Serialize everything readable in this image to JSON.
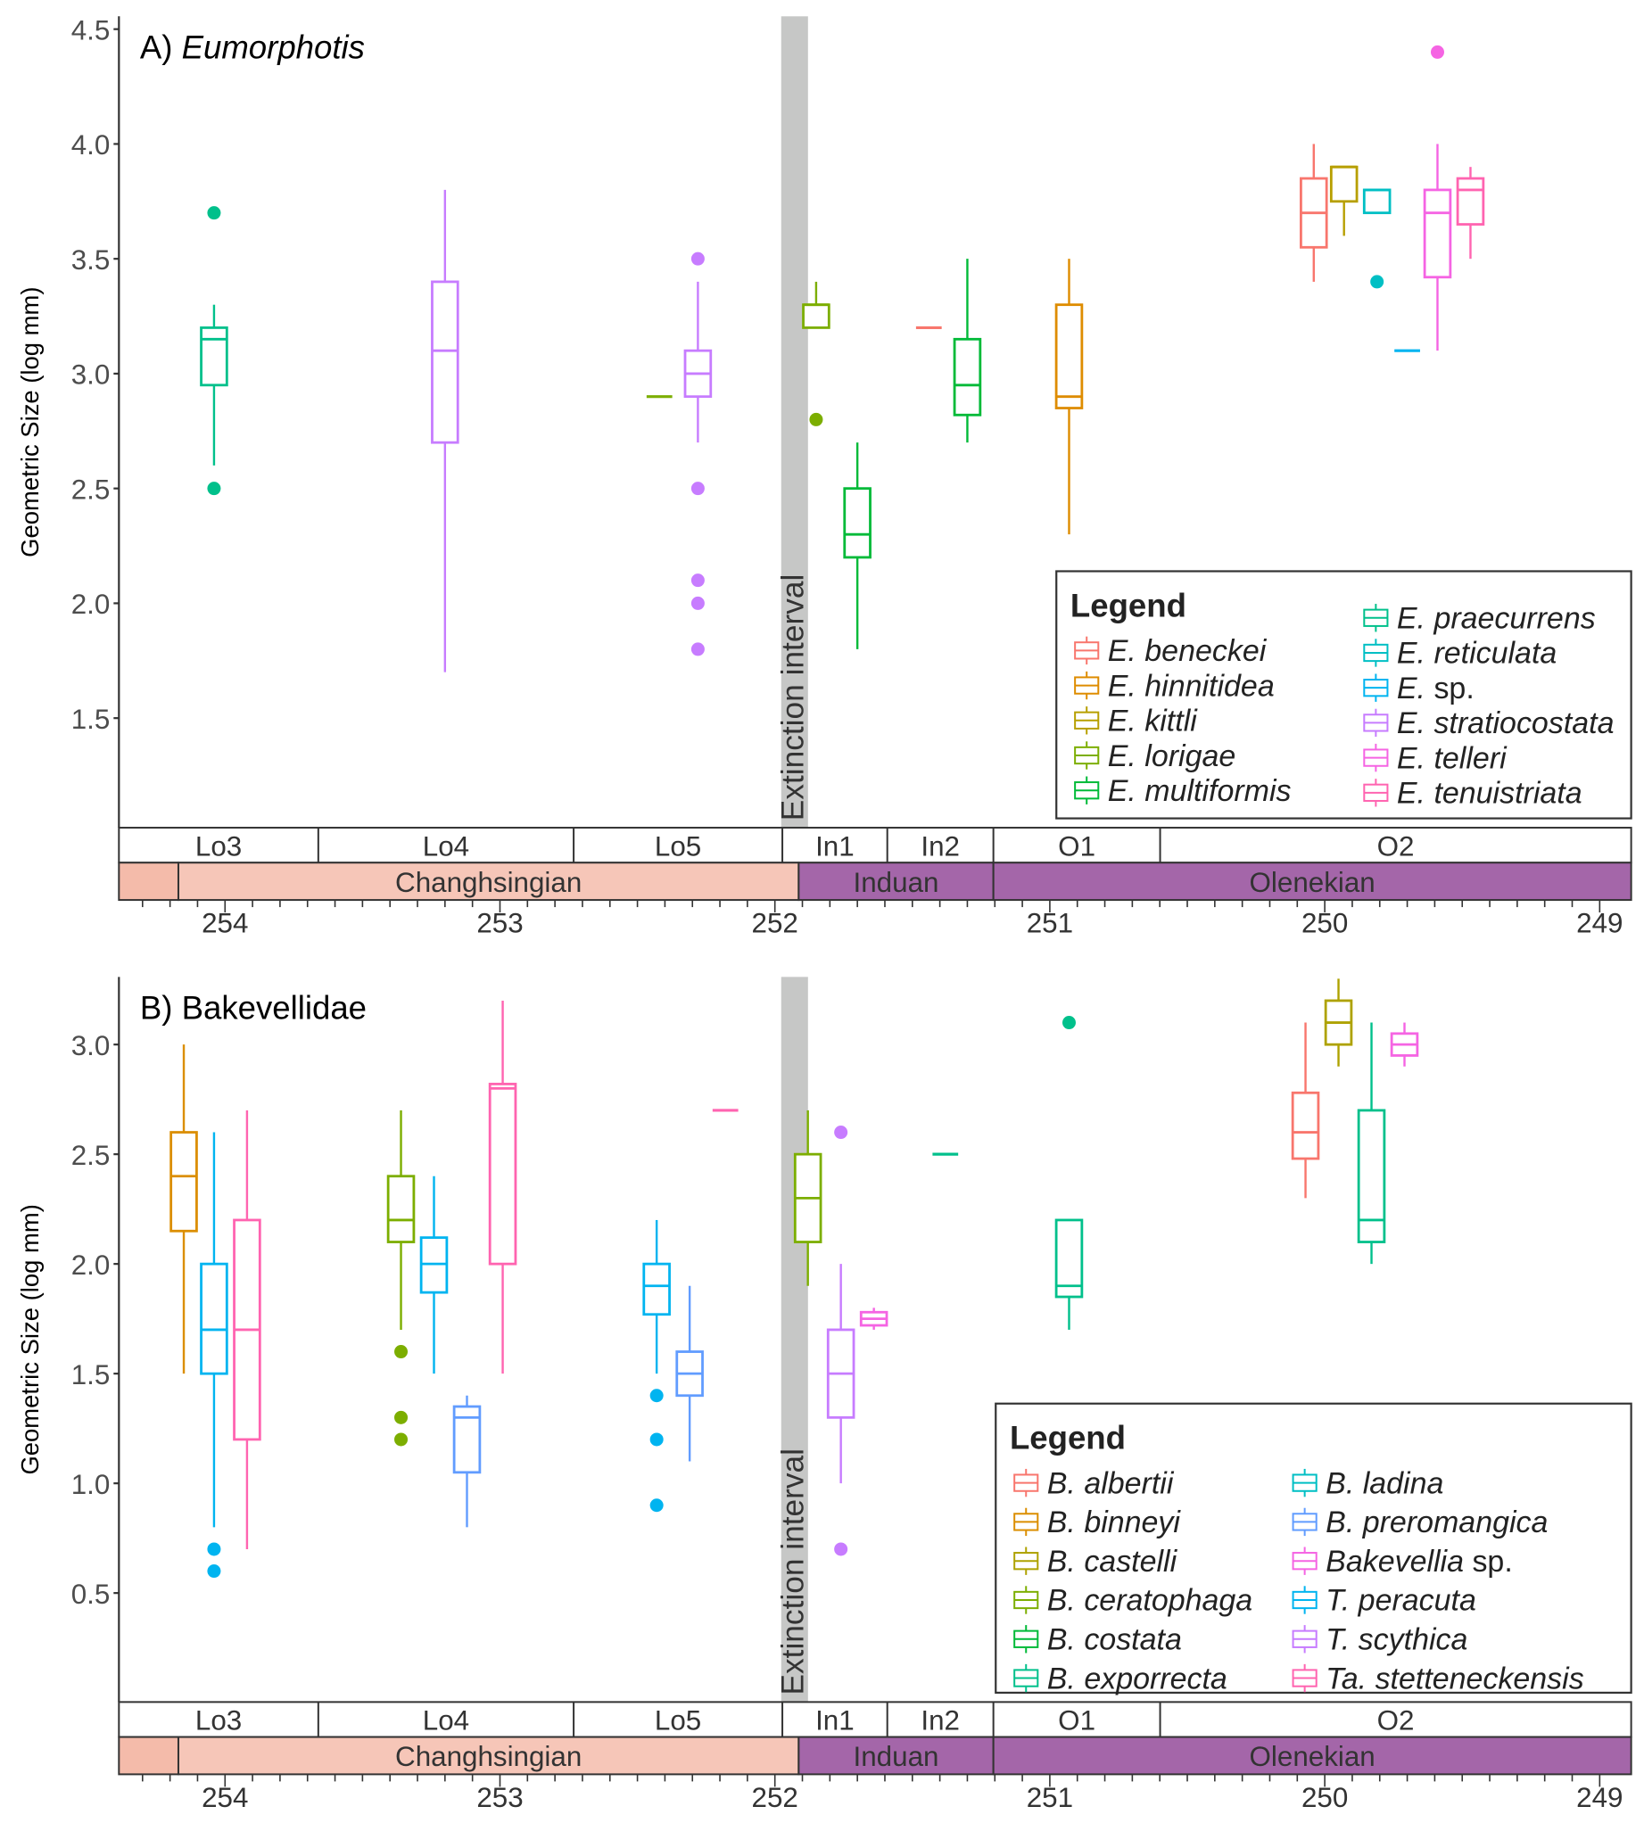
{
  "chart_data": [
    {
      "type": "box",
      "panel_label": "A)",
      "title": "Eumorphotis",
      "title_italic": true,
      "ylabel": "Geometric Size (log mm)",
      "xlabel": "",
      "ylim": [
        0.95,
        4.55
      ],
      "yticks": [
        "1.5",
        "2.0",
        "2.5",
        "3.0",
        "3.5",
        "4.0",
        "4.5"
      ],
      "xlim_ma": [
        254.38,
        248.9
      ],
      "xticks": [
        "254",
        "253",
        "252",
        "251",
        "250",
        "249"
      ],
      "extinction_interval": {
        "label": "Extinction interval",
        "from_ma": 251.96,
        "to_ma": 251.86
      },
      "zones": [
        {
          "label": "Lo3",
          "from_ma": 254.38,
          "to_ma": 253.66
        },
        {
          "label": "Lo4",
          "from_ma": 253.66,
          "to_ma": 252.73
        },
        {
          "label": "Lo5",
          "from_ma": 252.73,
          "to_ma": 251.96
        },
        {
          "label": "In1",
          "from_ma": 251.96,
          "to_ma": 251.58
        },
        {
          "label": "In2",
          "from_ma": 251.58,
          "to_ma": 251.2
        },
        {
          "label": "O1",
          "from_ma": 251.2,
          "to_ma": 250.6
        },
        {
          "label": "O2",
          "from_ma": 250.6,
          "to_ma": 248.9
        }
      ],
      "stages": [
        {
          "label": "",
          "from_ma": 254.38,
          "to_ma": 254.14,
          "color": "#F4BBAA"
        },
        {
          "label": "Changhsingian",
          "from_ma": 254.14,
          "to_ma": 251.9,
          "color": "#F6C6B8"
        },
        {
          "label": "Induan",
          "from_ma": 251.9,
          "to_ma": 251.2,
          "color": "#A466A9"
        },
        {
          "label": "Olenekian",
          "from_ma": 251.2,
          "to_ma": 248.9,
          "color": "#A466A9"
        }
      ],
      "legend": {
        "title": "Legend",
        "position": "bottom-right",
        "entries": [
          {
            "name": "E. beneckei",
            "genus": "E.",
            "epithet": "beneckei",
            "color": "#F8766D"
          },
          {
            "name": "E. hinnitidea",
            "genus": "E.",
            "epithet": "hinnitidea",
            "color": "#DE8C00"
          },
          {
            "name": "E. kittli",
            "genus": "E.",
            "epithet": "kittli",
            "color": "#B79F00"
          },
          {
            "name": "E. lorigae",
            "genus": "E.",
            "epithet": "lorigae",
            "color": "#7CAE00"
          },
          {
            "name": "E. multiformis",
            "genus": "E.",
            "epithet": "multiformis",
            "color": "#00BA38"
          },
          {
            "name": "E. praecurrens",
            "genus": "E.",
            "epithet": "praecurrens",
            "color": "#00C08B"
          },
          {
            "name": "E. reticulata",
            "genus": "E.",
            "epithet": "reticulata",
            "color": "#00BFC4"
          },
          {
            "name": "E. sp.",
            "genus": "E.",
            "epithet": "sp.",
            "epithet_italic": false,
            "color": "#00B4F0"
          },
          {
            "name": "E. stratiocostata",
            "genus": "E.",
            "epithet": "stratiocostata",
            "color": "#C77CFF"
          },
          {
            "name": "E. telleri",
            "genus": "E.",
            "epithet": "telleri",
            "color": "#F564E3"
          },
          {
            "name": "E. tenuistriata",
            "genus": "E.",
            "epithet": "tenuistriata",
            "color": "#FF64B0"
          }
        ]
      },
      "boxes": [
        {
          "taxon": "E. praecurrens",
          "zone": "Lo3",
          "x_ma": 254.04,
          "min": 2.6,
          "q1": 2.95,
          "median": 3.15,
          "q3": 3.2,
          "max": 3.3,
          "outliers": [
            3.7,
            2.5
          ]
        },
        {
          "taxon": "E. stratiocostata",
          "zone": "Lo4",
          "x_ma": 253.2,
          "min": 1.7,
          "q1": 2.7,
          "median": 3.1,
          "q3": 3.4,
          "max": 3.8,
          "outliers": []
        },
        {
          "taxon": "E. lorigae",
          "zone": "Lo5",
          "x_ma": 252.42,
          "min": 2.9,
          "q1": 2.9,
          "median": 2.9,
          "q3": 2.9,
          "max": 2.9,
          "outliers": []
        },
        {
          "taxon": "E. stratiocostata",
          "zone": "Lo5",
          "x_ma": 252.28,
          "min": 2.7,
          "q1": 2.9,
          "median": 3.0,
          "q3": 3.1,
          "max": 3.4,
          "outliers": [
            3.5,
            2.5,
            2.1,
            2.0,
            1.8
          ]
        },
        {
          "taxon": "E. lorigae",
          "zone": "In1",
          "x_ma": 251.85,
          "min": 3.2,
          "q1": 3.2,
          "median": 3.3,
          "q3": 3.3,
          "max": 3.4,
          "outliers": [
            2.8
          ]
        },
        {
          "taxon": "E. multiformis",
          "zone": "In1",
          "x_ma": 251.7,
          "min": 1.8,
          "q1": 2.2,
          "median": 2.3,
          "q3": 2.5,
          "max": 2.7,
          "outliers": []
        },
        {
          "taxon": "E. beneckei",
          "zone": "In2",
          "x_ma": 251.44,
          "min": 3.2,
          "q1": 3.2,
          "median": 3.2,
          "q3": 3.2,
          "max": 3.2,
          "outliers": []
        },
        {
          "taxon": "E. multiformis",
          "zone": "In2",
          "x_ma": 251.3,
          "min": 2.7,
          "q1": 2.82,
          "median": 2.95,
          "q3": 3.15,
          "max": 3.5,
          "outliers": []
        },
        {
          "taxon": "E. hinnitidea",
          "zone": "O1",
          "x_ma": 250.93,
          "min": 2.3,
          "q1": 2.85,
          "median": 2.9,
          "q3": 3.3,
          "max": 3.5,
          "outliers": []
        },
        {
          "taxon": "E. beneckei",
          "zone": "O2",
          "x_ma": 250.04,
          "min": 3.4,
          "q1": 3.55,
          "median": 3.7,
          "q3": 3.85,
          "max": 4.0,
          "outliers": []
        },
        {
          "taxon": "E. kittli",
          "zone": "O2",
          "x_ma": 249.93,
          "min": 3.6,
          "q1": 3.75,
          "median": 3.9,
          "q3": 3.9,
          "max": 3.9,
          "outliers": []
        },
        {
          "taxon": "E. reticulata",
          "zone": "O2",
          "x_ma": 249.81,
          "min": 3.7,
          "q1": 3.7,
          "median": 3.8,
          "q3": 3.8,
          "max": 3.8,
          "outliers": [
            3.4
          ]
        },
        {
          "taxon": "E. sp.",
          "zone": "O2",
          "x_ma": 249.7,
          "min": 3.1,
          "q1": 3.1,
          "median": 3.1,
          "q3": 3.1,
          "max": 3.1,
          "outliers": []
        },
        {
          "taxon": "E. telleri",
          "zone": "O2",
          "x_ma": 249.59,
          "min": 3.1,
          "q1": 3.42,
          "median": 3.7,
          "q3": 3.8,
          "max": 4.0,
          "outliers": [
            4.4
          ]
        },
        {
          "taxon": "E. tenuistriata",
          "zone": "O2",
          "x_ma": 249.47,
          "min": 3.5,
          "q1": 3.65,
          "median": 3.8,
          "q3": 3.85,
          "max": 3.9,
          "outliers": []
        }
      ]
    },
    {
      "type": "box",
      "panel_label": "B)",
      "title": "Bakevellidae",
      "title_italic": false,
      "ylabel": "Geometric Size (log mm)",
      "xlabel": "",
      "ylim": [
        0.0,
        3.3
      ],
      "yticks": [
        "0.5",
        "1.0",
        "1.5",
        "2.0",
        "2.5",
        "3.0"
      ],
      "xlim_ma": [
        254.38,
        248.9
      ],
      "xticks": [
        "254",
        "253",
        "252",
        "251",
        "250",
        "249"
      ],
      "extinction_interval": {
        "label": "Extinction interval",
        "from_ma": 251.96,
        "to_ma": 251.86
      },
      "zones": [
        {
          "label": "Lo3",
          "from_ma": 254.38,
          "to_ma": 253.66
        },
        {
          "label": "Lo4",
          "from_ma": 253.66,
          "to_ma": 252.73
        },
        {
          "label": "Lo5",
          "from_ma": 252.73,
          "to_ma": 251.96
        },
        {
          "label": "In1",
          "from_ma": 251.96,
          "to_ma": 251.58
        },
        {
          "label": "In2",
          "from_ma": 251.58,
          "to_ma": 251.2
        },
        {
          "label": "O1",
          "from_ma": 251.2,
          "to_ma": 250.6
        },
        {
          "label": "O2",
          "from_ma": 250.6,
          "to_ma": 248.9
        }
      ],
      "stages": [
        {
          "label": "",
          "from_ma": 254.38,
          "to_ma": 254.14,
          "color": "#F4BBAA"
        },
        {
          "label": "Changhsingian",
          "from_ma": 254.14,
          "to_ma": 251.9,
          "color": "#F6C6B8"
        },
        {
          "label": "Induan",
          "from_ma": 251.9,
          "to_ma": 251.2,
          "color": "#A466A9"
        },
        {
          "label": "Olenekian",
          "from_ma": 251.2,
          "to_ma": 248.9,
          "color": "#A466A9"
        }
      ],
      "legend": {
        "title": "Legend",
        "position": "bottom-right",
        "entries": [
          {
            "name": "B. albertii",
            "genus": "B.",
            "epithet": "albertii",
            "color": "#F8766D"
          },
          {
            "name": "B. binneyi",
            "genus": "B.",
            "epithet": "binneyi",
            "color": "#DB8E00"
          },
          {
            "name": "B. castelli",
            "genus": "B.",
            "epithet": "castelli",
            "color": "#AEA200"
          },
          {
            "name": "B. ceratophaga",
            "genus": "B.",
            "epithet": "ceratophaga",
            "color": "#7CAE00"
          },
          {
            "name": "B. costata",
            "genus": "B.",
            "epithet": "costata",
            "color": "#00BA38"
          },
          {
            "name": "B. exporrecta",
            "genus": "B.",
            "epithet": "exporrecta",
            "color": "#00C08B"
          },
          {
            "name": "B. ladina",
            "genus": "B.",
            "epithet": "ladina",
            "color": "#00BFC4"
          },
          {
            "name": "B. preromangica",
            "genus": "B.",
            "epithet": "preromangica",
            "color": "#619CFF"
          },
          {
            "name": "Bakevellia sp.",
            "genus": "Bakevellia",
            "epithet": "sp.",
            "epithet_italic": false,
            "color": "#F564E3"
          },
          {
            "name": "T. peracuta",
            "genus": "T.",
            "epithet": "peracuta",
            "color": "#00B4F0"
          },
          {
            "name": "T. scythica",
            "genus": "T.",
            "epithet": "scythica",
            "color": "#C77CFF"
          },
          {
            "name": "Ta. stetteneckensis",
            "genus": "Ta.",
            "epithet": "stetteneckensis",
            "color": "#FF64B0"
          }
        ]
      },
      "boxes": [
        {
          "taxon": "B. binneyi",
          "zone": "Lo3",
          "x_ma": 254.15,
          "min": 1.5,
          "q1": 2.15,
          "median": 2.4,
          "q3": 2.6,
          "max": 3.0,
          "outliers": []
        },
        {
          "taxon": "T. peracuta",
          "zone": "Lo3",
          "x_ma": 254.04,
          "min": 0.8,
          "q1": 1.5,
          "median": 1.7,
          "q3": 2.0,
          "max": 2.6,
          "outliers": [
            0.7,
            0.6
          ]
        },
        {
          "taxon": "Ta. stetteneckensis",
          "zone": "Lo3",
          "x_ma": 253.92,
          "min": 0.7,
          "q1": 1.2,
          "median": 1.7,
          "q3": 2.2,
          "max": 2.7,
          "outliers": []
        },
        {
          "taxon": "B. ceratophaga",
          "zone": "Lo4",
          "x_ma": 253.36,
          "min": 1.7,
          "q1": 2.1,
          "median": 2.2,
          "q3": 2.4,
          "max": 2.7,
          "outliers": [
            1.6,
            1.3,
            1.2
          ]
        },
        {
          "taxon": "T. peracuta",
          "zone": "Lo4",
          "x_ma": 253.24,
          "min": 1.5,
          "q1": 1.87,
          "median": 2.0,
          "q3": 2.12,
          "max": 2.4,
          "outliers": []
        },
        {
          "taxon": "B. preromangica",
          "zone": "Lo4",
          "x_ma": 253.12,
          "min": 0.8,
          "q1": 1.05,
          "median": 1.3,
          "q3": 1.35,
          "max": 1.4,
          "outliers": []
        },
        {
          "taxon": "Ta. stetteneckensis",
          "zone": "Lo4",
          "x_ma": 252.99,
          "min": 1.5,
          "q1": 2.0,
          "median": 2.8,
          "q3": 2.82,
          "max": 3.2,
          "outliers": []
        },
        {
          "taxon": "T. peracuta",
          "zone": "Lo5",
          "x_ma": 252.43,
          "min": 1.5,
          "q1": 1.77,
          "median": 1.9,
          "q3": 2.0,
          "max": 2.2,
          "outliers": [
            1.4,
            1.2,
            0.9
          ]
        },
        {
          "taxon": "B. preromangica",
          "zone": "Lo5",
          "x_ma": 252.31,
          "min": 1.1,
          "q1": 1.4,
          "median": 1.5,
          "q3": 1.6,
          "max": 1.9,
          "outliers": []
        },
        {
          "taxon": "Ta. stetteneckensis",
          "zone": "Lo5",
          "x_ma": 252.18,
          "min": 2.7,
          "q1": 2.7,
          "median": 2.7,
          "q3": 2.7,
          "max": 2.7,
          "outliers": []
        },
        {
          "taxon": "B. ceratophaga",
          "zone": "In1",
          "x_ma": 251.88,
          "min": 1.9,
          "q1": 2.1,
          "median": 2.3,
          "q3": 2.5,
          "max": 2.7,
          "outliers": []
        },
        {
          "taxon": "T. scythica",
          "zone": "In1",
          "x_ma": 251.76,
          "min": 1.0,
          "q1": 1.3,
          "median": 1.5,
          "q3": 1.7,
          "max": 2.0,
          "outliers": [
            2.6,
            0.7
          ]
        },
        {
          "taxon": "Bakevellia sp.",
          "zone": "In1",
          "x_ma": 251.64,
          "min": 1.7,
          "q1": 1.72,
          "median": 1.75,
          "q3": 1.78,
          "max": 1.8,
          "outliers": []
        },
        {
          "taxon": "B. exporrecta",
          "zone": "In2",
          "x_ma": 251.38,
          "min": 2.5,
          "q1": 2.5,
          "median": 2.5,
          "q3": 2.5,
          "max": 2.5,
          "outliers": []
        },
        {
          "taxon": "B. exporrecta",
          "zone": "O1",
          "x_ma": 250.93,
          "min": 1.7,
          "q1": 1.85,
          "median": 1.9,
          "q3": 2.2,
          "max": 2.2,
          "outliers": [
            3.1
          ]
        },
        {
          "taxon": "B. albertii",
          "zone": "O2",
          "x_ma": 250.07,
          "min": 2.3,
          "q1": 2.48,
          "median": 2.6,
          "q3": 2.78,
          "max": 3.1,
          "outliers": []
        },
        {
          "taxon": "B. castelli",
          "zone": "O2",
          "x_ma": 249.95,
          "min": 2.9,
          "q1": 3.0,
          "median": 3.1,
          "q3": 3.2,
          "max": 3.3,
          "outliers": []
        },
        {
          "taxon": "B. exporrecta",
          "zone": "O2",
          "x_ma": 249.83,
          "min": 2.0,
          "q1": 2.1,
          "median": 2.2,
          "q3": 2.7,
          "max": 3.1,
          "outliers": []
        },
        {
          "taxon": "Bakevellia sp.",
          "zone": "O2",
          "x_ma": 249.71,
          "min": 2.9,
          "q1": 2.95,
          "median": 3.0,
          "q3": 3.05,
          "max": 3.1,
          "outliers": []
        }
      ]
    }
  ]
}
